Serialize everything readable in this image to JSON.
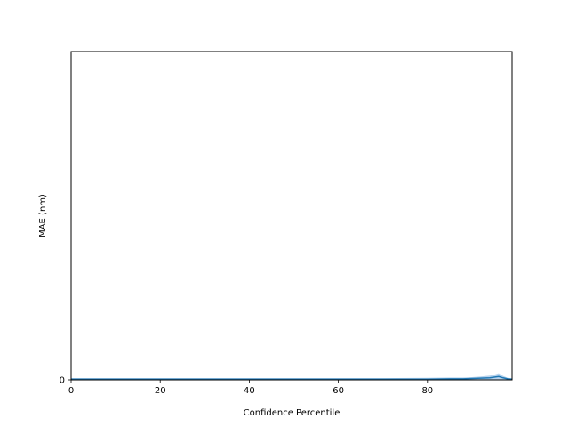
{
  "chart_data": {
    "type": "line",
    "title": "",
    "xlabel": "Confidence Percentile",
    "ylabel": "MAE (nm)",
    "xlim": [
      0,
      99
    ],
    "ylim": [
      0,
      1
    ],
    "xticks": [
      "0",
      "20",
      "40",
      "60",
      "80"
    ],
    "yticks": [
      "0"
    ],
    "grid": false,
    "legend": "none",
    "colors": {
      "line": "#1f77b4",
      "band": "#a6c8e8",
      "axes": "#000000"
    },
    "series": [
      {
        "x": [
          0,
          10,
          20,
          30,
          40,
          50,
          60,
          70,
          80,
          85,
          88,
          90,
          92,
          94,
          95,
          96,
          97,
          98,
          99
        ],
        "values": [
          0.002,
          0.002,
          0.002,
          0.002,
          0.002,
          0.002,
          0.002,
          0.002,
          0.002,
          0.003,
          0.003,
          0.004,
          0.005,
          0.006,
          0.008,
          0.01,
          0.006,
          0.003,
          0.002
        ],
        "band_lower": [
          0.0,
          0.0,
          0.0,
          0.0,
          0.0,
          0.0,
          0.0,
          0.0,
          0.0,
          0.0,
          0.0,
          0.0,
          0.0,
          0.0,
          0.0,
          0.0,
          0.0,
          0.0,
          0.0
        ],
        "band_upper": [
          0.005,
          0.005,
          0.005,
          0.005,
          0.005,
          0.005,
          0.005,
          0.005,
          0.006,
          0.007,
          0.007,
          0.008,
          0.01,
          0.013,
          0.016,
          0.02,
          0.012,
          0.006,
          0.004
        ]
      }
    ]
  }
}
